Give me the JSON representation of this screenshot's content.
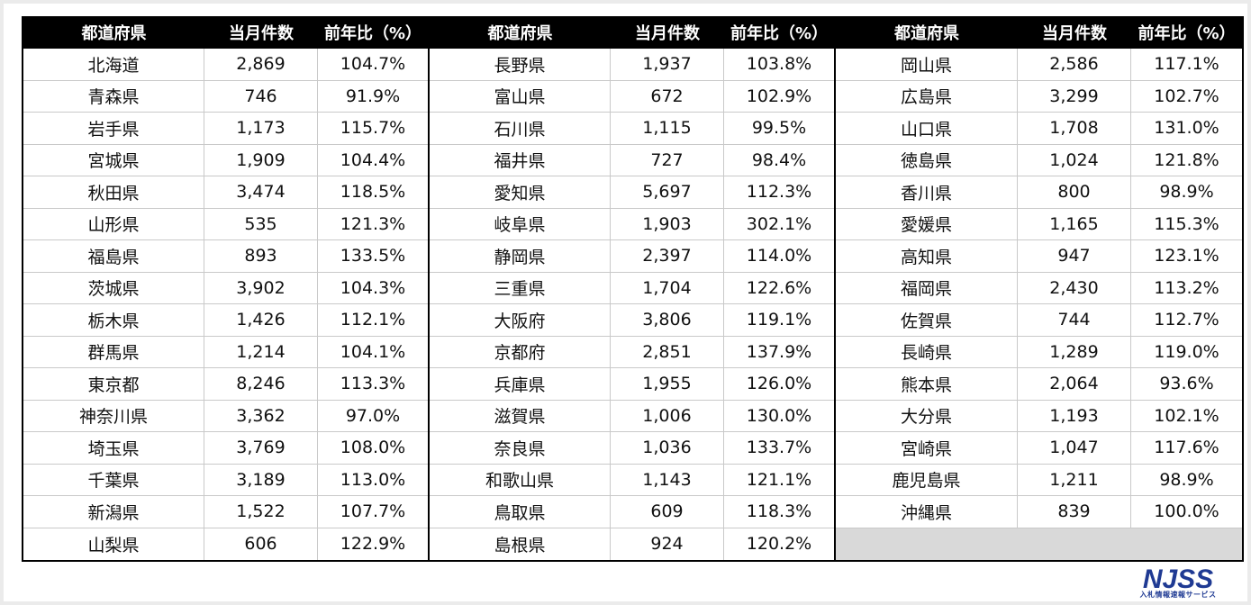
{
  "headers": {
    "prefecture": "都道府県",
    "count": "当月件数",
    "ratio": "前年比（%）"
  },
  "blocks": [
    {
      "rows": [
        {
          "name": "北海道",
          "count": "2,869",
          "ratio": "104.7%"
        },
        {
          "name": "青森県",
          "count": "746",
          "ratio": "91.9%"
        },
        {
          "name": "岩手県",
          "count": "1,173",
          "ratio": "115.7%"
        },
        {
          "name": "宮城県",
          "count": "1,909",
          "ratio": "104.4%"
        },
        {
          "name": "秋田県",
          "count": "3,474",
          "ratio": "118.5%"
        },
        {
          "name": "山形県",
          "count": "535",
          "ratio": "121.3%"
        },
        {
          "name": "福島県",
          "count": "893",
          "ratio": "133.5%"
        },
        {
          "name": "茨城県",
          "count": "3,902",
          "ratio": "104.3%"
        },
        {
          "name": "栃木県",
          "count": "1,426",
          "ratio": "112.1%"
        },
        {
          "name": "群馬県",
          "count": "1,214",
          "ratio": "104.1%"
        },
        {
          "name": "東京都",
          "count": "8,246",
          "ratio": "113.3%"
        },
        {
          "name": "神奈川県",
          "count": "3,362",
          "ratio": "97.0%"
        },
        {
          "name": "埼玉県",
          "count": "3,769",
          "ratio": "108.0%"
        },
        {
          "name": "千葉県",
          "count": "3,189",
          "ratio": "113.0%"
        },
        {
          "name": "新潟県",
          "count": "1,522",
          "ratio": "107.7%"
        },
        {
          "name": "山梨県",
          "count": "606",
          "ratio": "122.9%"
        }
      ]
    },
    {
      "rows": [
        {
          "name": "長野県",
          "count": "1,937",
          "ratio": "103.8%"
        },
        {
          "name": "富山県",
          "count": "672",
          "ratio": "102.9%"
        },
        {
          "name": "石川県",
          "count": "1,115",
          "ratio": "99.5%"
        },
        {
          "name": "福井県",
          "count": "727",
          "ratio": "98.4%"
        },
        {
          "name": "愛知県",
          "count": "5,697",
          "ratio": "112.3%"
        },
        {
          "name": "岐阜県",
          "count": "1,903",
          "ratio": "302.1%"
        },
        {
          "name": "静岡県",
          "count": "2,397",
          "ratio": "114.0%"
        },
        {
          "name": "三重県",
          "count": "1,704",
          "ratio": "122.6%"
        },
        {
          "name": "大阪府",
          "count": "3,806",
          "ratio": "119.1%"
        },
        {
          "name": "京都府",
          "count": "2,851",
          "ratio": "137.9%"
        },
        {
          "name": "兵庫県",
          "count": "1,955",
          "ratio": "126.0%"
        },
        {
          "name": "滋賀県",
          "count": "1,006",
          "ratio": "130.0%"
        },
        {
          "name": "奈良県",
          "count": "1,036",
          "ratio": "133.7%"
        },
        {
          "name": "和歌山県",
          "count": "1,143",
          "ratio": "121.1%"
        },
        {
          "name": "鳥取県",
          "count": "609",
          "ratio": "118.3%"
        },
        {
          "name": "島根県",
          "count": "924",
          "ratio": "120.2%"
        }
      ]
    },
    {
      "rows": [
        {
          "name": "岡山県",
          "count": "2,586",
          "ratio": "117.1%"
        },
        {
          "name": "広島県",
          "count": "3,299",
          "ratio": "102.7%"
        },
        {
          "name": "山口県",
          "count": "1,708",
          "ratio": "131.0%"
        },
        {
          "name": "徳島県",
          "count": "1,024",
          "ratio": "121.8%"
        },
        {
          "name": "香川県",
          "count": "800",
          "ratio": "98.9%"
        },
        {
          "name": "愛媛県",
          "count": "1,165",
          "ratio": "115.3%"
        },
        {
          "name": "高知県",
          "count": "947",
          "ratio": "123.1%"
        },
        {
          "name": "福岡県",
          "count": "2,430",
          "ratio": "113.2%"
        },
        {
          "name": "佐賀県",
          "count": "744",
          "ratio": "112.7%"
        },
        {
          "name": "長崎県",
          "count": "1,289",
          "ratio": "119.0%"
        },
        {
          "name": "熊本県",
          "count": "2,064",
          "ratio": "93.6%"
        },
        {
          "name": "大分県",
          "count": "1,193",
          "ratio": "102.1%"
        },
        {
          "name": "宮崎県",
          "count": "1,047",
          "ratio": "117.6%"
        },
        {
          "name": "鹿児島県",
          "count": "1,211",
          "ratio": "98.9%"
        },
        {
          "name": "沖縄県",
          "count": "839",
          "ratio": "100.0%"
        }
      ]
    }
  ],
  "logo": {
    "text": "NJSS",
    "subtitle": "入札情報速報サービス",
    "color": "#1f3a93"
  },
  "colors": {
    "header_bg": "#000000",
    "header_text": "#ffffff",
    "empty_cell": "#d9d9d9",
    "grid": "#c9c9c9"
  }
}
